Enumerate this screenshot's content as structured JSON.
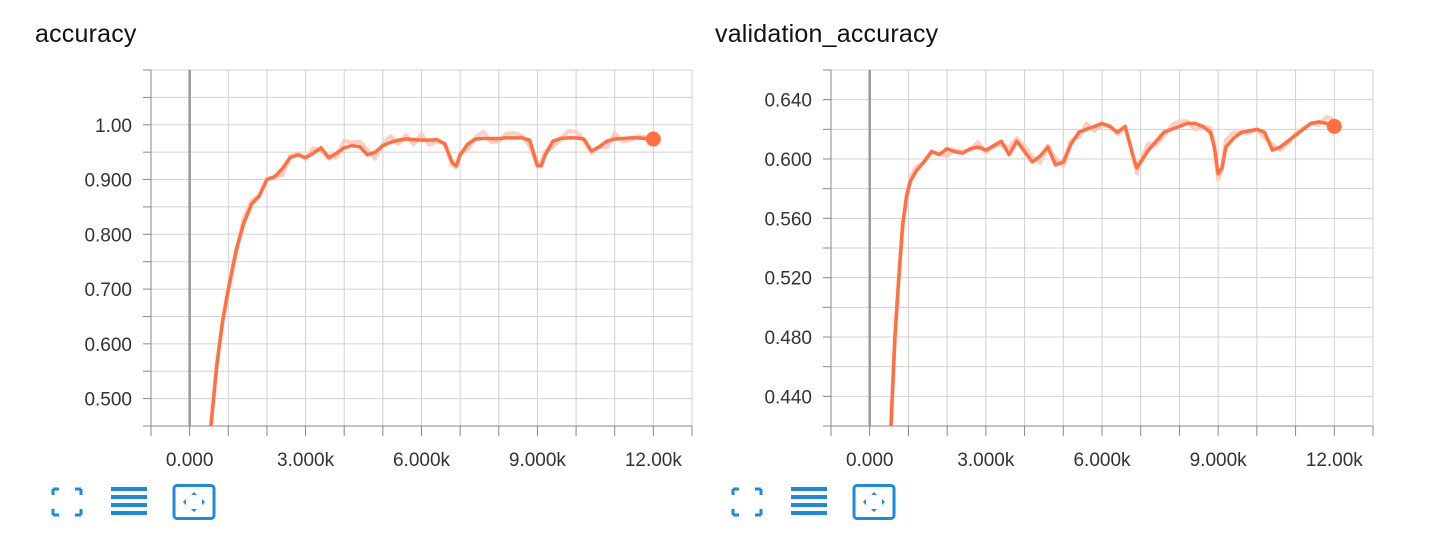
{
  "colors": {
    "line": "#ff7043",
    "raw_line": "#ffc9bb",
    "grid": "#d0d0d0",
    "axis": "#888888",
    "zero_line": "#999999",
    "icon": "#1e88e5"
  },
  "toolbar": {
    "icons": [
      "expand-icon",
      "data-list-icon",
      "fit-domain-icon"
    ]
  },
  "chart_data": [
    {
      "type": "line",
      "title": "accuracy",
      "x_ticks": [
        "0.000",
        "3.000k",
        "6.000k",
        "9.000k",
        "12.00k"
      ],
      "y_ticks": [
        "0.500",
        "0.600",
        "0.700",
        "0.800",
        "0.900",
        "1.00"
      ],
      "xlim": [
        -1000,
        13000
      ],
      "ylim": [
        0.45,
        1.1
      ],
      "grid": true,
      "series": [
        {
          "x": [
            550,
            700,
            850,
            1000,
            1200,
            1400,
            1600,
            1800,
            2000,
            2200,
            2400,
            2600,
            2800,
            3000,
            3200,
            3400,
            3600,
            3800,
            4000,
            4200,
            4400,
            4600,
            4800,
            5000,
            5200,
            5400,
            5600,
            5800,
            6000,
            6200,
            6400,
            6600,
            6800,
            6900,
            7000,
            7200,
            7400,
            7600,
            7800,
            8000,
            8200,
            8400,
            8600,
            8800,
            9000,
            9100,
            9200,
            9400,
            9600,
            9800,
            10000,
            10200,
            10400,
            10600,
            10800,
            11000,
            11200,
            11400,
            11600,
            11800,
            12000
          ],
          "y": [
            0.45,
            0.56,
            0.64,
            0.7,
            0.77,
            0.82,
            0.855,
            0.87,
            0.9,
            0.905,
            0.92,
            0.94,
            0.945,
            0.94,
            0.948,
            0.958,
            0.94,
            0.948,
            0.958,
            0.962,
            0.96,
            0.945,
            0.95,
            0.962,
            0.968,
            0.972,
            0.974,
            0.973,
            0.972,
            0.972,
            0.973,
            0.965,
            0.93,
            0.925,
            0.945,
            0.965,
            0.974,
            0.975,
            0.975,
            0.975,
            0.976,
            0.976,
            0.976,
            0.972,
            0.925,
            0.925,
            0.945,
            0.97,
            0.975,
            0.976,
            0.976,
            0.974,
            0.952,
            0.96,
            0.97,
            0.974,
            0.975,
            0.976,
            0.976,
            0.975,
            0.974
          ]
        }
      ]
    },
    {
      "type": "line",
      "title": "validation_accuracy",
      "x_ticks": [
        "0.000",
        "3.000k",
        "6.000k",
        "9.000k",
        "12.00k"
      ],
      "y_ticks": [
        "0.440",
        "0.480",
        "0.520",
        "0.560",
        "0.600",
        "0.640"
      ],
      "xlim": [
        -1000,
        13000
      ],
      "ylim": [
        0.42,
        0.66
      ],
      "grid": true,
      "series": [
        {
          "x": [
            550,
            650,
            750,
            850,
            950,
            1050,
            1200,
            1400,
            1600,
            1800,
            2000,
            2200,
            2400,
            2600,
            2800,
            3000,
            3200,
            3400,
            3600,
            3800,
            4000,
            4200,
            4400,
            4600,
            4800,
            5000,
            5200,
            5400,
            5600,
            5800,
            6000,
            6200,
            6400,
            6600,
            6800,
            6900,
            7000,
            7200,
            7400,
            7600,
            7800,
            8000,
            8200,
            8400,
            8600,
            8800,
            8900,
            9000,
            9100,
            9200,
            9400,
            9600,
            9800,
            10000,
            10200,
            10400,
            10600,
            10800,
            11000,
            11200,
            11400,
            11600,
            11800,
            12000
          ],
          "y": [
            0.42,
            0.48,
            0.52,
            0.555,
            0.575,
            0.585,
            0.592,
            0.598,
            0.605,
            0.603,
            0.607,
            0.605,
            0.604,
            0.607,
            0.608,
            0.606,
            0.609,
            0.612,
            0.603,
            0.612,
            0.605,
            0.598,
            0.602,
            0.608,
            0.596,
            0.598,
            0.61,
            0.618,
            0.62,
            0.622,
            0.624,
            0.622,
            0.618,
            0.622,
            0.602,
            0.594,
            0.598,
            0.606,
            0.612,
            0.618,
            0.62,
            0.622,
            0.624,
            0.624,
            0.622,
            0.618,
            0.608,
            0.59,
            0.594,
            0.608,
            0.614,
            0.618,
            0.619,
            0.62,
            0.618,
            0.606,
            0.608,
            0.612,
            0.616,
            0.62,
            0.624,
            0.625,
            0.624,
            0.622
          ]
        }
      ]
    }
  ]
}
